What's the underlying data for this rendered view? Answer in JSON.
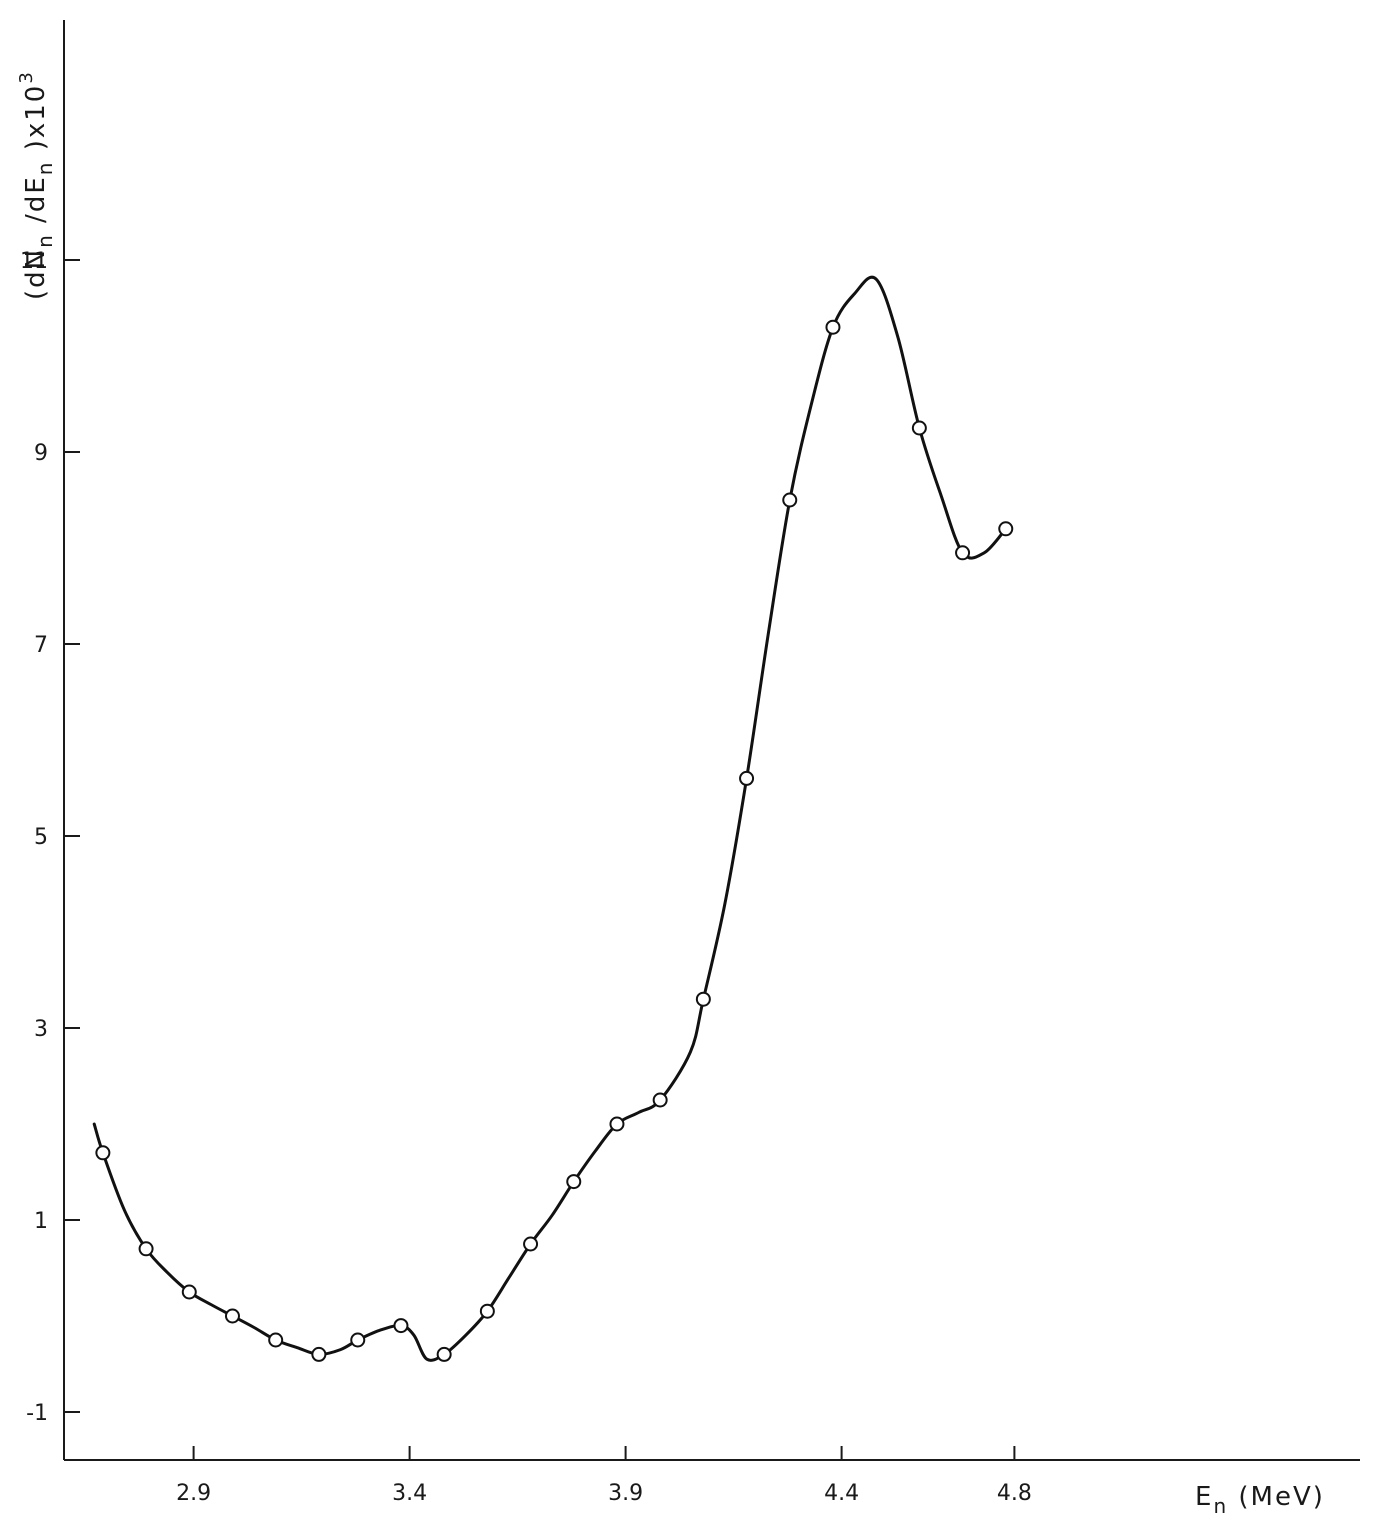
{
  "chart_data": {
    "type": "line",
    "title": "",
    "xlabel": "E",
    "xlabel_sub": "n",
    "xlabel_unit": " (MeV)",
    "ylabel": "(dN",
    "ylabel_sub1": "n",
    "ylabel_mid": " /dE",
    "ylabel_sub2": "n",
    "ylabel_end": " )x10",
    "ylabel_sup": "3",
    "xlim": [
      2.6,
      5.6
    ],
    "ylim": [
      -1.5,
      13.5
    ],
    "x_ticks": [
      2.9,
      3.4,
      3.9,
      4.4,
      4.8
    ],
    "x_tick_labels": [
      "2.9",
      "3.4",
      "3.9",
      "4.4",
      "4.8"
    ],
    "y_ticks": [
      -1,
      1,
      3,
      5,
      7,
      9,
      11
    ],
    "y_tick_labels": [
      "-1",
      "1",
      "3",
      "5",
      "7",
      "9",
      "11"
    ],
    "grid": false,
    "series": [
      {
        "kind": "points",
        "marker": "open-circle",
        "x": [
          2.69,
          2.79,
          2.89,
          2.99,
          3.09,
          3.19,
          3.28,
          3.38,
          3.48,
          3.58,
          3.68,
          3.78,
          3.88,
          3.98,
          4.08,
          4.18,
          4.28,
          4.38,
          4.58,
          4.68,
          4.78
        ],
        "y": [
          1.7,
          0.7,
          0.25,
          0.0,
          -0.25,
          -0.4,
          -0.25,
          -0.1,
          -0.4,
          0.05,
          0.75,
          1.4,
          2.0,
          2.25,
          3.3,
          5.6,
          8.5,
          10.3,
          9.25,
          7.95,
          8.2
        ]
      },
      {
        "kind": "curve",
        "x": [
          2.67,
          2.69,
          2.74,
          2.79,
          2.84,
          2.89,
          2.94,
          2.99,
          3.04,
          3.09,
          3.14,
          3.19,
          3.24,
          3.28,
          3.33,
          3.38,
          3.41,
          3.44,
          3.48,
          3.53,
          3.58,
          3.63,
          3.68,
          3.73,
          3.78,
          3.83,
          3.88,
          3.93,
          3.98,
          4.05,
          4.08,
          4.13,
          4.18,
          4.23,
          4.28,
          4.33,
          4.38,
          4.43,
          4.48,
          4.53,
          4.58,
          4.63,
          4.68,
          4.73,
          4.78
        ],
        "y": [
          2.0,
          1.7,
          1.1,
          0.7,
          0.45,
          0.25,
          0.12,
          0.0,
          -0.12,
          -0.25,
          -0.33,
          -0.4,
          -0.35,
          -0.25,
          -0.15,
          -0.1,
          -0.2,
          -0.45,
          -0.4,
          -0.2,
          0.05,
          0.4,
          0.75,
          1.05,
          1.4,
          1.72,
          2.0,
          2.12,
          2.25,
          2.75,
          3.3,
          4.3,
          5.6,
          7.1,
          8.5,
          9.5,
          10.3,
          10.65,
          10.8,
          10.2,
          9.25,
          8.55,
          7.95,
          7.95,
          8.2
        ]
      }
    ]
  }
}
